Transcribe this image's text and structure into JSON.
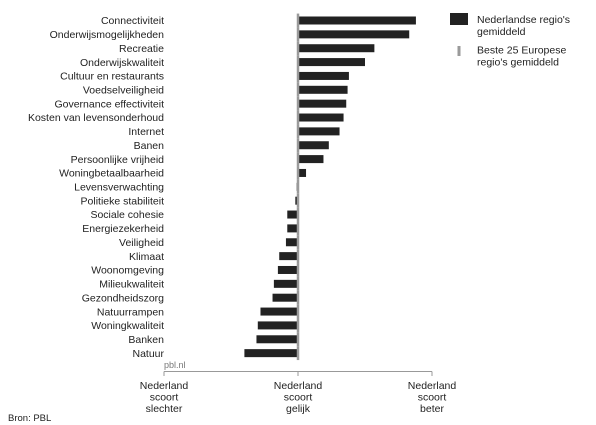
{
  "chart_data": {
    "type": "bar",
    "orientation": "horizontal",
    "categories": [
      "Connectiviteit",
      "Onderwijsmogelijkheden",
      "Recreatie",
      "Onderwijskwaliteit",
      "Cultuur en restaurants",
      "Voedselveiligheid",
      "Governance effectiviteit",
      "Kosten van levensonderhoud",
      "Internet",
      "Banen",
      "Persoonlijke vrijheid",
      "Woningbetaalbaarheid",
      "Levensverwachting",
      "Politieke stabiliteit",
      "Sociale cohesie",
      "Energiezekerheid",
      "Veiligheid",
      "Klimaat",
      "Woonomgeving",
      "Milieukwaliteit",
      "Gezondheidszorg",
      "Natuurrampen",
      "Woningkwaliteit",
      "Banken",
      "Natuur"
    ],
    "series": [
      {
        "name": "Nederlandse regio's gemiddeld",
        "values": [
          0.88,
          0.83,
          0.57,
          0.5,
          0.38,
          0.37,
          0.36,
          0.34,
          0.31,
          0.23,
          0.19,
          0.06,
          -0.01,
          -0.02,
          -0.08,
          -0.08,
          -0.09,
          -0.14,
          -0.15,
          -0.18,
          -0.19,
          -0.28,
          -0.3,
          -0.31,
          -0.4
        ],
        "color": "#222222"
      },
      {
        "name": "Beste 25 Europese regio's gemiddeld",
        "values": [
          0,
          0,
          0,
          0,
          0,
          0,
          0,
          0,
          0,
          0,
          0,
          0,
          0,
          0,
          0,
          0,
          0,
          0,
          0,
          0,
          0,
          0,
          0,
          0,
          0
        ],
        "color": "#9a9a9a"
      }
    ],
    "xlim": [
      -1,
      1
    ],
    "xticks": [
      {
        "value": -1,
        "label": [
          "Nederland",
          "scoort",
          "slechter"
        ]
      },
      {
        "value": 0,
        "label": [
          "Nederland",
          "scoort",
          "gelijk"
        ]
      },
      {
        "value": 1,
        "label": [
          "Nederland",
          "scoort",
          "beter"
        ]
      }
    ],
    "legend": {
      "position": "top-right",
      "entries": [
        [
          "Nederlandse regio's",
          "gemiddeld"
        ],
        [
          "Beste 25 Europese",
          "regio's gemiddeld"
        ]
      ]
    },
    "watermark": "pbl.nl"
  },
  "footer": {
    "source": "Bron: PBL"
  }
}
